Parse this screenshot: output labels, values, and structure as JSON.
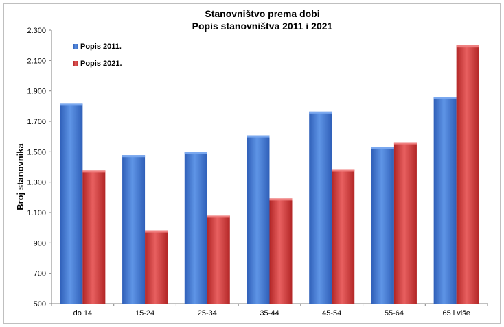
{
  "chart_data": {
    "type": "bar",
    "title": [
      "Stanovništvo prema dobi",
      "Popis stanovništva 2011 i 2021"
    ],
    "xlabel": "",
    "ylabel": "Broj stanovnika",
    "categories": [
      "do 14",
      "15-24",
      "25-34",
      "35-44",
      "45-54",
      "55-64",
      "65 i više"
    ],
    "series": [
      {
        "name": "Popis 2011.",
        "color": "#4a7fd4",
        "values": [
          1820,
          1478,
          1500,
          1607,
          1764,
          1530,
          1860
        ]
      },
      {
        "name": "Popis 2021.",
        "color": "#d83f3f",
        "values": [
          1378,
          980,
          1080,
          1193,
          1382,
          1562,
          2200
        ]
      }
    ],
    "ylim": [
      500,
      2300
    ],
    "yticks": [
      500,
      700,
      900,
      1100,
      1300,
      1500,
      1700,
      1900,
      2100,
      2300
    ],
    "ytick_labels": [
      "500",
      "700",
      "900",
      "1.100",
      "1.300",
      "1.500",
      "1.700",
      "1.900",
      "2.100",
      "2.300"
    ],
    "legend_position": "top-left",
    "grid": false
  }
}
